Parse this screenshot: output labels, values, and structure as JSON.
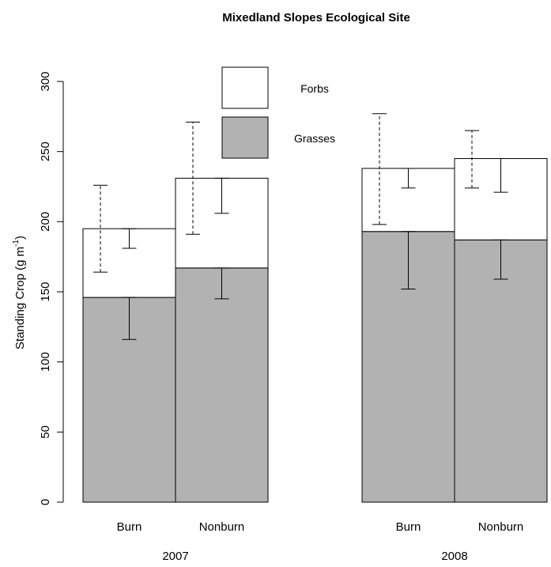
{
  "chart_data": {
    "type": "bar",
    "stacked": true,
    "title": "Mixedland Slopes Ecological Site",
    "ylabel": "Standing Crop (g m",
    "ylabel_exponent": "-1",
    "ylabel_close": ")",
    "ylim": [
      0,
      300
    ],
    "yticks": [
      0,
      50,
      100,
      150,
      200,
      250,
      300
    ],
    "groups": [
      "2007",
      "2008"
    ],
    "categories": [
      "Burn",
      "Nonburn",
      "Burn",
      "Nonburn"
    ],
    "category_group": [
      0,
      0,
      1,
      1
    ],
    "series": [
      {
        "name": "Grasses",
        "color": "#b2b2b2",
        "values": [
          146,
          167,
          193,
          187
        ],
        "error_low": [
          116,
          145,
          152,
          159
        ],
        "error_high": [
          146,
          167,
          193,
          187
        ],
        "error_style": "solid"
      },
      {
        "name": "Forbs",
        "color": "#ffffff",
        "values": [
          49,
          64,
          45,
          58
        ],
        "error_top_low": [
          164,
          191,
          198,
          224
        ],
        "error_top_high": [
          226,
          271,
          277,
          265
        ],
        "error_top_style": "dashed",
        "error_mid_low": [
          181,
          206,
          224,
          221
        ],
        "error_mid_high": [
          195,
          231,
          238,
          245
        ],
        "error_mid_style": "solid"
      }
    ],
    "legend": [
      {
        "label": "Forbs",
        "color": "#ffffff"
      },
      {
        "label": "Grasses",
        "color": "#b2b2b2"
      }
    ],
    "legend_position": "top-center",
    "grid": false
  }
}
